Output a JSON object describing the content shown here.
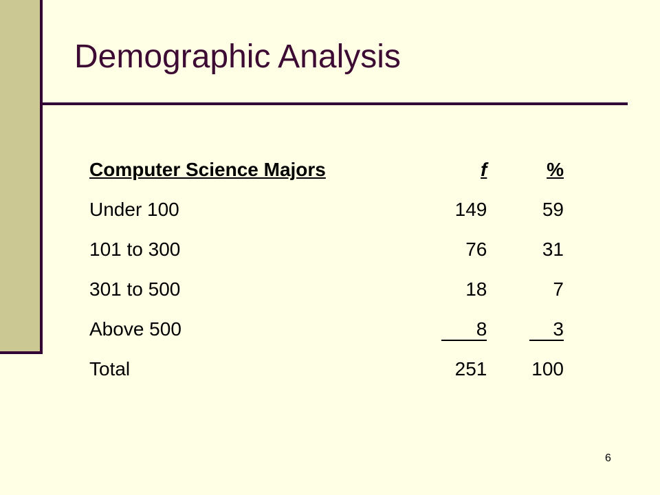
{
  "slide": {
    "title": "Demographic Analysis",
    "page_number": "6"
  },
  "table": {
    "headers": {
      "label": "Computer Science Majors",
      "f": "f",
      "pct": "%"
    },
    "rows": [
      {
        "label": "Under 100",
        "f": "149",
        "pct": "59"
      },
      {
        "label": "101 to 300",
        "f": "76",
        "pct": "31"
      },
      {
        "label": "301 to 500",
        "f": "18",
        "pct": "7"
      },
      {
        "label": "Above 500",
        "f": "8",
        "pct": "3"
      },
      {
        "label": "Total",
        "f": "251",
        "pct": "100"
      }
    ]
  },
  "colors": {
    "background": "#FFFFE6",
    "accent_bar": "#CCC894",
    "rule": "#330033",
    "title": "#3D0A33"
  }
}
